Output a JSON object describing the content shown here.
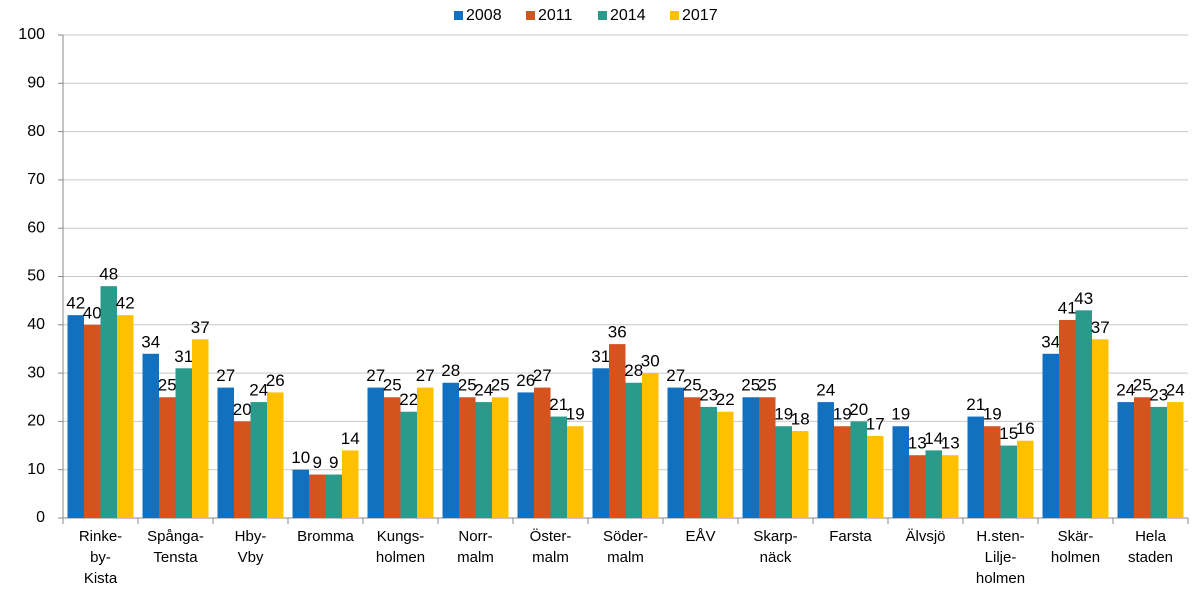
{
  "chart_data": {
    "type": "bar",
    "categories": [
      "Rinke-\nby-\nKista",
      "Spånga-\nTensta",
      "Hby-\nVby",
      "Bromma",
      "Kungs-\nholmen",
      "Norr-\nmalm",
      "Öster-\nmalm",
      "Söder-\nmalm",
      "EÅV",
      "Skarp-\nnäck",
      "Farsta",
      "Älvsjö",
      "H.sten-\nLilje-\nholmen",
      "Skär-\nholmen",
      "Hela\nstaden"
    ],
    "series": [
      {
        "name": "2008",
        "color": "#1270c1",
        "values": [
          42,
          34,
          27,
          10,
          27,
          28,
          26,
          31,
          27,
          25,
          24,
          19,
          21,
          34,
          24
        ]
      },
      {
        "name": "2011",
        "color": "#d4531f",
        "values": [
          40,
          25,
          20,
          9,
          25,
          25,
          27,
          36,
          25,
          25,
          19,
          13,
          19,
          41,
          25
        ]
      },
      {
        "name": "2014",
        "color": "#2a9a8c",
        "values": [
          48,
          31,
          24,
          9,
          22,
          24,
          21,
          28,
          23,
          19,
          20,
          14,
          15,
          43,
          23
        ]
      },
      {
        "name": "2017",
        "color": "#ffc000",
        "values": [
          42,
          37,
          26,
          14,
          27,
          25,
          19,
          30,
          22,
          18,
          17,
          13,
          16,
          37,
          24
        ]
      }
    ],
    "ylim": [
      0,
      100
    ],
    "yticks": [
      0,
      10,
      20,
      30,
      40,
      50,
      60,
      70,
      80,
      90,
      100
    ],
    "grid": true,
    "legend": "top"
  }
}
